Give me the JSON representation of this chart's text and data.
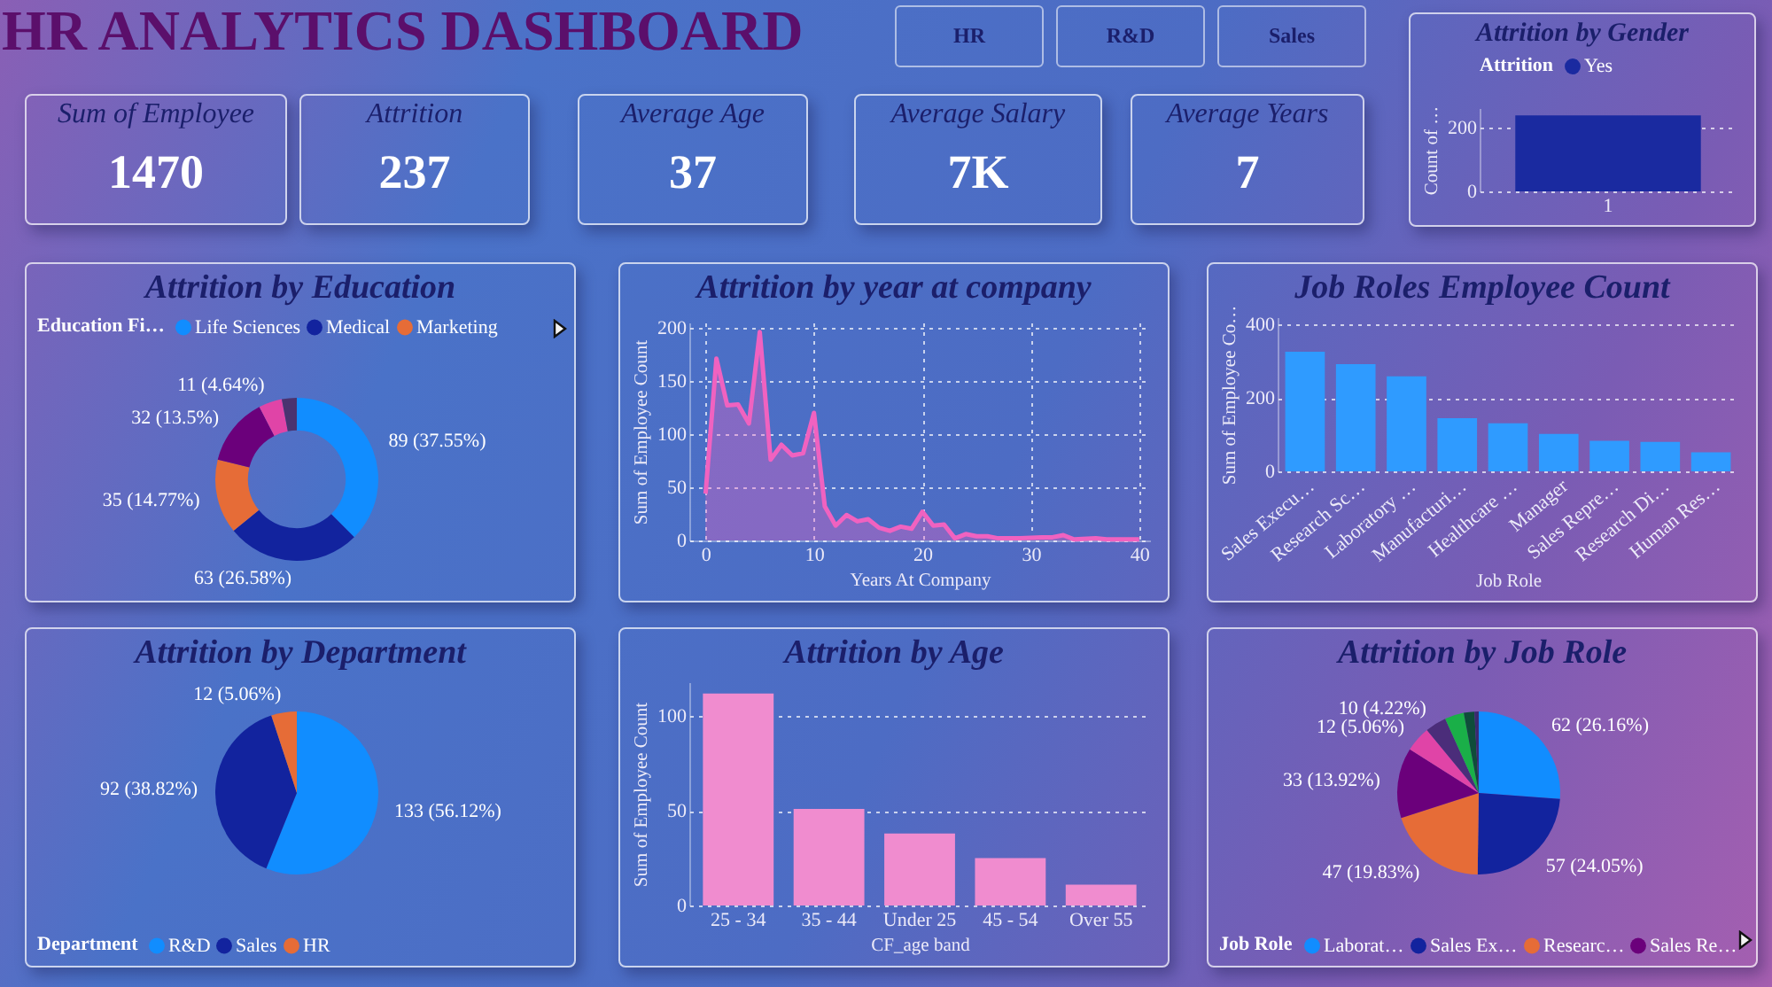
{
  "chart_data": [
    {
      "type": "other",
      "title": "HR ANALYTICS DASHBOARD",
      "annotations": [
        "HR",
        "R&D",
        "Sales"
      ]
    },
    {
      "type": "other",
      "annotations": [
        "Sum of Employee",
        "1470",
        "Attrition",
        "237",
        "Average Age",
        "37",
        "Average Salary",
        "7K",
        "Average Years",
        "7"
      ]
    },
    {
      "type": "bar",
      "title": "Attrition by Gender",
      "categories": [
        "1"
      ],
      "series": [
        {
          "name": "Yes",
          "color": "#1a2aa0",
          "values": [
            237
          ]
        }
      ],
      "ylabel": "Count of …",
      "legend_title": "Attrition",
      "legend": "top",
      "ylim": [
        0,
        260
      ],
      "yticks": [
        0,
        200
      ],
      "grid": "y"
    },
    {
      "type": "donut",
      "title": "Attrition by Education",
      "categories": [
        "Life Sciences",
        "Medical",
        "Marketing",
        null,
        null,
        null
      ],
      "values": [
        89,
        63,
        35,
        32,
        11,
        7
      ],
      "value_labels": [
        "89 (37.55%)",
        "63 (26.58%)",
        "35 (14.77%)",
        "32 (13.5%)",
        "11 (4.64%)",
        null
      ],
      "colors": [
        "#118dff",
        "#12239e",
        "#e66c37",
        "#6b007b",
        "#e044a7",
        "#4a3370"
      ],
      "legend_title": "Education Fi…",
      "legend": "top"
    },
    {
      "type": "area",
      "title": "Attrition by year at company",
      "x": [
        0,
        1,
        2,
        3,
        4,
        5,
        6,
        7,
        8,
        9,
        10,
        11,
        12,
        13,
        14,
        15,
        16,
        17,
        18,
        19,
        20,
        21,
        22,
        23,
        24,
        25,
        26,
        27,
        29,
        31,
        32,
        33,
        34,
        36,
        37,
        40
      ],
      "series": [
        {
          "color": "#f062c0",
          "values": [
            44,
            171,
            127,
            128,
            110,
            196,
            76,
            90,
            80,
            82,
            120,
            32,
            14,
            24,
            18,
            20,
            12,
            9,
            13,
            11,
            27,
            14,
            15,
            2,
            6,
            4,
            4,
            2,
            2,
            3,
            3,
            5,
            1,
            2,
            1,
            1
          ]
        }
      ],
      "xlabel": "Years At Company",
      "ylabel": "Sum of Employee Count",
      "xlim": [
        -1.5,
        41
      ],
      "xticks": [
        0,
        10,
        20,
        30,
        40
      ],
      "ylim": [
        0,
        205
      ],
      "yticks": [
        0,
        50,
        100,
        150,
        200
      ],
      "grid": true
    },
    {
      "type": "bar",
      "title": "Job Roles Employee Count",
      "categories": [
        "Sales Execu…",
        "Research Sc…",
        "Laboratory …",
        "Manufacturi…",
        "Healthcare …",
        "Manager",
        "Sales Repre…",
        "Research Di…",
        "Human Res…"
      ],
      "values": [
        326,
        292,
        259,
        145,
        131,
        102,
        83,
        80,
        52
      ],
      "color": "#2f9bff",
      "xlabel": "Job Role",
      "ylabel": "Sum of Employee Co…",
      "ylim": [
        0,
        420
      ],
      "yticks": [
        0,
        200,
        400
      ],
      "grid": "y"
    },
    {
      "type": "pie",
      "title": "Attrition by Department",
      "categories": [
        "R&D",
        "Sales",
        "HR"
      ],
      "values": [
        133,
        92,
        12
      ],
      "value_labels": [
        "133 (56.12%)",
        "92 (38.82%)",
        "12 (5.06%)"
      ],
      "colors": [
        "#118dff",
        "#12239e",
        "#e66c37"
      ],
      "legend_title": "Department",
      "legend": "bottom"
    },
    {
      "type": "bar",
      "title": "Attrition by Age",
      "categories": [
        "25 - 34",
        "35 - 44",
        "Under 25",
        "45 - 54",
        "Over 55"
      ],
      "values": [
        112,
        51,
        38,
        25,
        11
      ],
      "color": "#f08ccf",
      "xlabel": "CF_age band",
      "ylabel": "Sum of Employee Count",
      "ylim": [
        0,
        118
      ],
      "yticks": [
        0,
        50,
        100
      ],
      "grid": "y"
    },
    {
      "type": "pie",
      "title": "Attrition by Job Role",
      "categories": [
        "Laborat…",
        "Sales Ex…",
        "Researc…",
        "Sales Re…",
        null,
        null,
        null,
        null,
        null
      ],
      "values": [
        62,
        57,
        47,
        33,
        12,
        10,
        9,
        5,
        2
      ],
      "value_labels": [
        "62 (26.16%)",
        "57 (24.05%)",
        "47 (19.83%)",
        "33 (13.92%)",
        "12 (5.06%)",
        "10 (4.22%)",
        null,
        null,
        null
      ],
      "colors": [
        "#118dff",
        "#12239e",
        "#e66c37",
        "#6b007b",
        "#e044a7",
        "#4b2d7a",
        "#1aaf48",
        "#0f4d3a",
        "#3a2a70"
      ],
      "legend_title": "Job Role",
      "legend": "bottom"
    }
  ]
}
